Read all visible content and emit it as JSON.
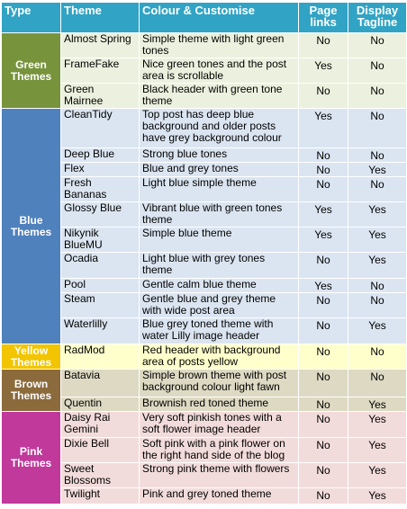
{
  "table": {
    "header": [
      "Type",
      "Theme",
      "Colour  & Customise",
      "Page links",
      "Display Tagline"
    ],
    "groups": [
      {
        "type": "Green Themes",
        "rows": [
          [
            "Almost Spring",
            "Simple theme with light green tones",
            "No",
            "No"
          ],
          [
            "FrameFake",
            "Nice green tones and the post area is scrollable",
            "Yes",
            "No"
          ],
          [
            "Green Mairnee",
            "Black header with green tone theme",
            "No",
            "No"
          ]
        ]
      },
      {
        "type": "Blue Themes",
        "rows": [
          [
            "CleanTidy",
            "Top post has deep blue background and older posts have grey background colour",
            "Yes",
            "No"
          ],
          [
            "Deep Blue",
            "Strong blue tones",
            "No",
            "No"
          ],
          [
            "Flex",
            "Blue and grey tones",
            "No",
            "Yes"
          ],
          [
            "Fresh Bananas",
            "Light blue simple theme",
            "No",
            "No"
          ],
          [
            "Glossy Blue",
            "Vibrant blue with green tones theme",
            "Yes",
            "Yes"
          ],
          [
            "Nikynik BlueMU",
            "Simple blue theme",
            "Yes",
            "Yes"
          ],
          [
            "Ocadia",
            "Light blue with grey tones theme",
            "No",
            "Yes"
          ],
          [
            "Pool",
            "Gentle calm blue theme",
            "Yes",
            "No"
          ],
          [
            "Steam",
            "Gentle blue and grey theme with wide post area",
            "No",
            "No"
          ],
          [
            "Waterlilly",
            "Blue grey toned theme with water Lilly image header",
            "No",
            "Yes"
          ]
        ]
      },
      {
        "type": "Yellow Themes",
        "rows": [
          [
            "RadMod",
            "Red header with background area of posts yellow",
            "No",
            "No"
          ]
        ]
      },
      {
        "type": "Brown Themes",
        "rows": [
          [
            "Batavia",
            "Simple brown theme with post background colour light fawn",
            "No",
            "No"
          ],
          [
            "Quentin",
            "Brownish red toned theme",
            "No",
            "Yes"
          ]
        ]
      },
      {
        "type": "Pink Themes",
        "rows": [
          [
            "Daisy Rai Gemini",
            "Very soft pinkish tones with a soft flower image header",
            "No",
            "Yes"
          ],
          [
            "Dixie Bell",
            "Soft pink with a pink flower on the right hand side of the blog",
            "No",
            "Yes"
          ],
          [
            "Sweet Blossoms",
            "Strong pink theme with flowers",
            "No",
            "Yes"
          ],
          [
            "Twilight",
            "Pink and grey toned theme",
            "No",
            "Yes"
          ]
        ]
      }
    ]
  }
}
